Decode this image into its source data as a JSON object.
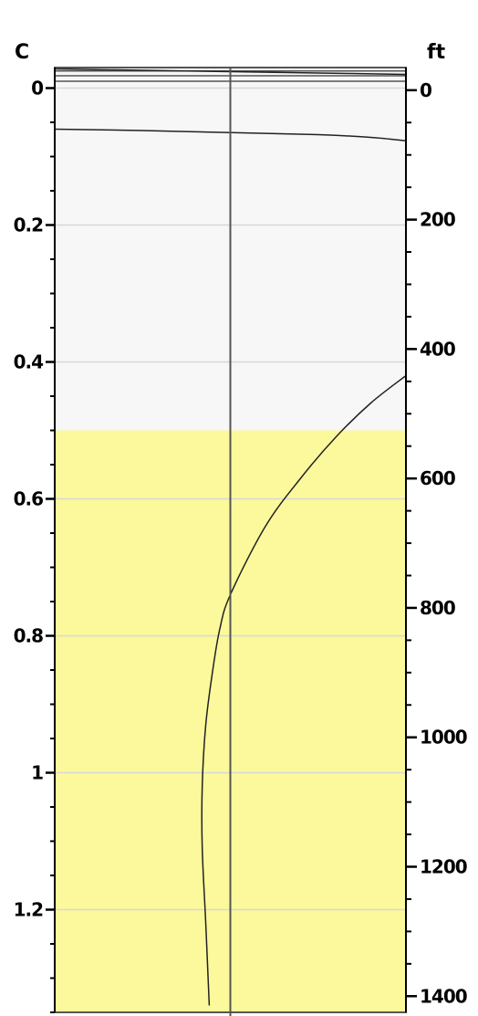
{
  "chart_data": {
    "type": "line",
    "title": "",
    "left_axis": {
      "unit_label": "C",
      "range": [
        -0.03,
        1.35
      ],
      "reversed": true,
      "ticks": [
        0,
        0.2,
        0.4,
        0.6,
        0.8,
        1,
        1.2
      ],
      "tick_labels": [
        "0",
        "0.2",
        "0.4",
        "0.6",
        "0.8",
        "1",
        "1.2"
      ]
    },
    "right_axis": {
      "unit_label": "ft",
      "range": [
        -35,
        1425
      ],
      "reversed": true,
      "ticks": [
        0,
        200,
        400,
        600,
        800,
        1000,
        1200,
        1400
      ],
      "tick_labels": [
        "0",
        "200",
        "400",
        "600",
        "800",
        "1000",
        "1200",
        "1400"
      ]
    },
    "grid": true,
    "zones": [
      {
        "from": -0.03,
        "to": 0.5,
        "color": "#f7f7f8"
      },
      {
        "from": 0.5,
        "to": 1.35,
        "color": "#fbf99b"
      }
    ],
    "horizontal_lines": [
      {
        "x": [
          0,
          0.5,
          1
        ],
        "y": [
          -0.025,
          -0.025,
          -0.025
        ]
      },
      {
        "x": [
          0,
          0.5,
          1
        ],
        "y": [
          -0.018,
          -0.018,
          -0.018
        ]
      },
      {
        "x": [
          0,
          0.5,
          1
        ],
        "y": [
          -0.01,
          -0.01,
          -0.01
        ]
      }
    ],
    "series": [
      {
        "x": [
          0,
          0.25,
          0.5,
          0.75,
          0.9,
          1
        ],
        "y": [
          0.06,
          0.062,
          0.065,
          0.068,
          0.072,
          0.077
        ]
      },
      {
        "x": [
          0,
          0.25,
          0.5,
          0.75,
          1
        ],
        "y": [
          -0.028,
          -0.026,
          -0.024,
          -0.022,
          -0.02
        ]
      },
      {
        "x": [
          1.0,
          0.9,
          0.8,
          0.7,
          0.6,
          0.5,
          0.47,
          0.45,
          0.43,
          0.42,
          0.42,
          0.43,
          0.44
        ],
        "y": [
          0.42,
          0.46,
          0.51,
          0.57,
          0.64,
          0.74,
          0.79,
          0.85,
          0.93,
          1.02,
          1.11,
          1.22,
          1.34
        ]
      }
    ],
    "reference_line": {
      "x": 0.5
    },
    "colors": {
      "grid": "#d8d8d8",
      "curve": "#222222",
      "axis": "#000000",
      "frame": "#555555"
    }
  }
}
